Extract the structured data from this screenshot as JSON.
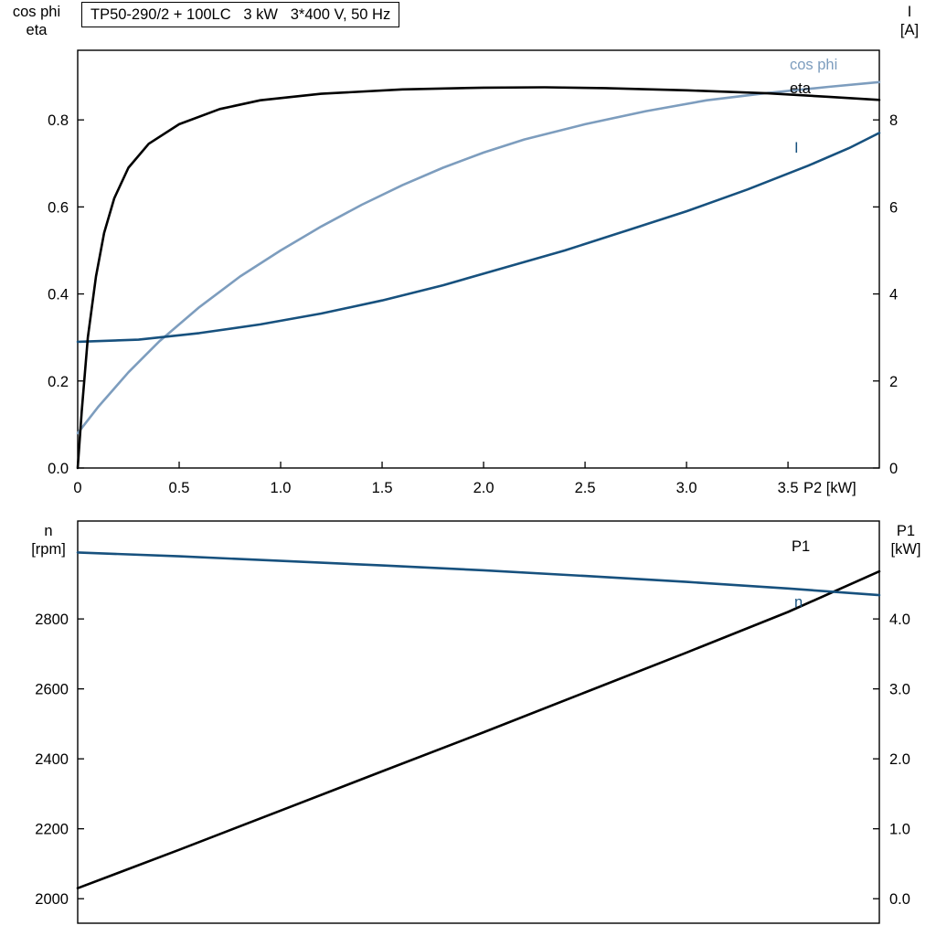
{
  "title_box": "TP50-290/2 + 100LC   3 kW   3*400 V, 50 Hz",
  "axis_titles": {
    "top_left_line1": "cos phi",
    "top_left_line2": "eta",
    "top_right_line1": "I",
    "top_right_line2": "[A]",
    "x_axis_top": "P2 [kW]",
    "bottom_left_line1": "n",
    "bottom_left_line2": "[rpm]",
    "bottom_right_line1": "P1",
    "bottom_right_line2": "[kW]"
  },
  "curve_labels": {
    "cos_phi": "cos phi",
    "eta": "eta",
    "current": "I",
    "p1": "P1",
    "speed": "n"
  },
  "colors": {
    "background": "#ffffff",
    "frame": "#000000",
    "eta": "#000000",
    "cos_phi": "#7d9dbe",
    "current": "#17517e",
    "p1": "#000000",
    "speed": "#17517e"
  },
  "chart_data": [
    {
      "type": "line",
      "title": "TP50-290/2 + 100LC   3 kW   3*400 V, 50 Hz",
      "grid": false,
      "legend_position": "right-inline",
      "x_axis": {
        "label": "P2 [kW]",
        "range": [
          0,
          3.95
        ],
        "ticks": [
          {
            "v": 0,
            "label": "0"
          },
          {
            "v": 0.5,
            "label": "0.5"
          },
          {
            "v": 1.0,
            "label": "1.0"
          },
          {
            "v": 1.5,
            "label": "1.5"
          },
          {
            "v": 2.0,
            "label": "2.0"
          },
          {
            "v": 2.5,
            "label": "2.5"
          },
          {
            "v": 3.0,
            "label": "3.0"
          },
          {
            "v": 3.5,
            "label": "3.5"
          }
        ]
      },
      "y_left": {
        "label": "cos phi / eta",
        "range": [
          0,
          0.96
        ],
        "ticks": [
          {
            "v": 0.0,
            "label": "0.0"
          },
          {
            "v": 0.2,
            "label": "0.2"
          },
          {
            "v": 0.4,
            "label": "0.4"
          },
          {
            "v": 0.6,
            "label": "0.6"
          },
          {
            "v": 0.8,
            "label": "0.8"
          }
        ]
      },
      "y_right": {
        "label": "I [A]",
        "range": [
          0,
          9.6
        ],
        "ticks": [
          {
            "v": 0,
            "label": "0"
          },
          {
            "v": 2,
            "label": "2"
          },
          {
            "v": 4,
            "label": "4"
          },
          {
            "v": 6,
            "label": "6"
          },
          {
            "v": 8,
            "label": "8"
          }
        ]
      },
      "series": [
        {
          "name": "cos phi",
          "axis": "left",
          "color": "#7d9dbe",
          "x": [
            0,
            0.1,
            0.25,
            0.4,
            0.6,
            0.8,
            1.0,
            1.2,
            1.4,
            1.6,
            1.8,
            2.0,
            2.2,
            2.5,
            2.8,
            3.1,
            3.4,
            3.7,
            3.95
          ],
          "y": [
            0.08,
            0.14,
            0.22,
            0.29,
            0.37,
            0.44,
            0.5,
            0.555,
            0.605,
            0.65,
            0.69,
            0.725,
            0.755,
            0.79,
            0.82,
            0.845,
            0.862,
            0.876,
            0.887
          ]
        },
        {
          "name": "I",
          "axis": "right",
          "color": "#17517e",
          "x": [
            0,
            0.3,
            0.6,
            0.9,
            1.2,
            1.5,
            1.8,
            2.1,
            2.4,
            2.7,
            3.0,
            3.3,
            3.6,
            3.8,
            3.95
          ],
          "y": [
            2.9,
            2.95,
            3.1,
            3.3,
            3.55,
            3.85,
            4.2,
            4.6,
            5.0,
            5.45,
            5.9,
            6.4,
            6.95,
            7.35,
            7.7
          ]
        },
        {
          "name": "eta",
          "axis": "left",
          "color": "#000000",
          "x": [
            0,
            0.02,
            0.05,
            0.09,
            0.13,
            0.18,
            0.25,
            0.35,
            0.5,
            0.7,
            0.9,
            1.2,
            1.6,
            2.0,
            2.3,
            2.6,
            3.0,
            3.4,
            3.7,
            3.95
          ],
          "y": [
            0,
            0.13,
            0.3,
            0.44,
            0.54,
            0.62,
            0.69,
            0.745,
            0.79,
            0.825,
            0.845,
            0.86,
            0.87,
            0.874,
            0.875,
            0.873,
            0.868,
            0.861,
            0.853,
            0.846
          ]
        }
      ]
    },
    {
      "type": "line",
      "title": "",
      "grid": false,
      "legend_position": "right-inline",
      "x_axis": {
        "label": "",
        "range": [
          0,
          3.95
        ],
        "ticks": []
      },
      "y_left": {
        "label": "n [rpm]",
        "range": [
          1930,
          3080
        ],
        "ticks": [
          {
            "v": 2000,
            "label": "2000"
          },
          {
            "v": 2200,
            "label": "2200"
          },
          {
            "v": 2400,
            "label": "2400"
          },
          {
            "v": 2600,
            "label": "2600"
          },
          {
            "v": 2800,
            "label": "2800"
          }
        ]
      },
      "y_right": {
        "label": "P1 [kW]",
        "range": [
          -0.35,
          5.4
        ],
        "ticks": [
          {
            "v": 0.0,
            "label": "0.0"
          },
          {
            "v": 1.0,
            "label": "1.0"
          },
          {
            "v": 2.0,
            "label": "2.0"
          },
          {
            "v": 3.0,
            "label": "3.0"
          },
          {
            "v": 4.0,
            "label": "4.0"
          }
        ]
      },
      "series": [
        {
          "name": "P1",
          "axis": "right",
          "color": "#000000",
          "x": [
            0,
            0.5,
            1.0,
            1.5,
            2.0,
            2.5,
            3.0,
            3.5,
            3.95
          ],
          "y": [
            0.15,
            0.7,
            1.26,
            1.82,
            2.38,
            2.95,
            3.52,
            4.1,
            4.68
          ]
        },
        {
          "name": "n",
          "axis": "left",
          "color": "#17517e",
          "x": [
            0,
            0.5,
            1.0,
            1.5,
            2.0,
            2.5,
            3.0,
            3.5,
            3.95
          ],
          "y": [
            2990,
            2979,
            2966,
            2953,
            2939,
            2923,
            2906,
            2887,
            2868
          ]
        }
      ]
    }
  ]
}
